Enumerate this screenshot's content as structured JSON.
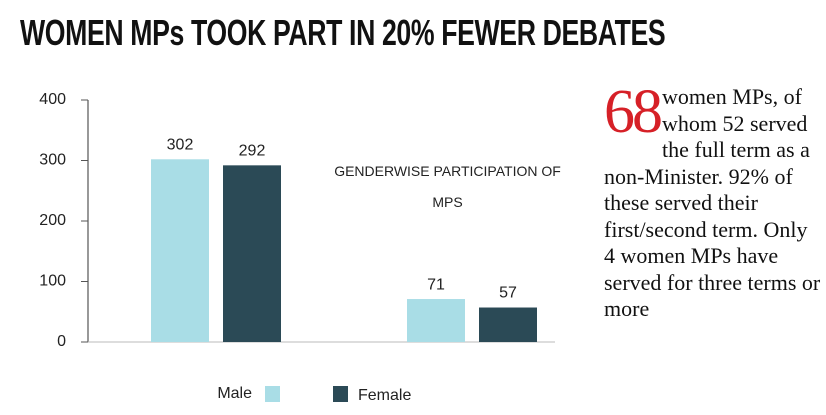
{
  "chart_data": {
    "type": "bar",
    "title": "WOMEN MPs TOOK PART IN 20% FEWER DEBATES",
    "categories": [
      null,
      null
    ],
    "series": [
      {
        "name": "Male",
        "color": "#a9dde6",
        "values": [
          302,
          71
        ]
      },
      {
        "name": "Female",
        "color": "#2b4a56",
        "values": [
          292,
          57
        ]
      }
    ],
    "ylim": [
      0,
      400
    ],
    "yticks": [
      0,
      100,
      200,
      300,
      400
    ],
    "grid": false,
    "legend": "bottom",
    "annotation": "GENDERWISE PARTICIPATION OF MPS",
    "side_note": {
      "number": "68",
      "text": "women MPs, of whom 52 served the full term as a non-Minister. 92% of these served their first/second term.  Only 4 women MPs have served for three terms or more"
    }
  }
}
